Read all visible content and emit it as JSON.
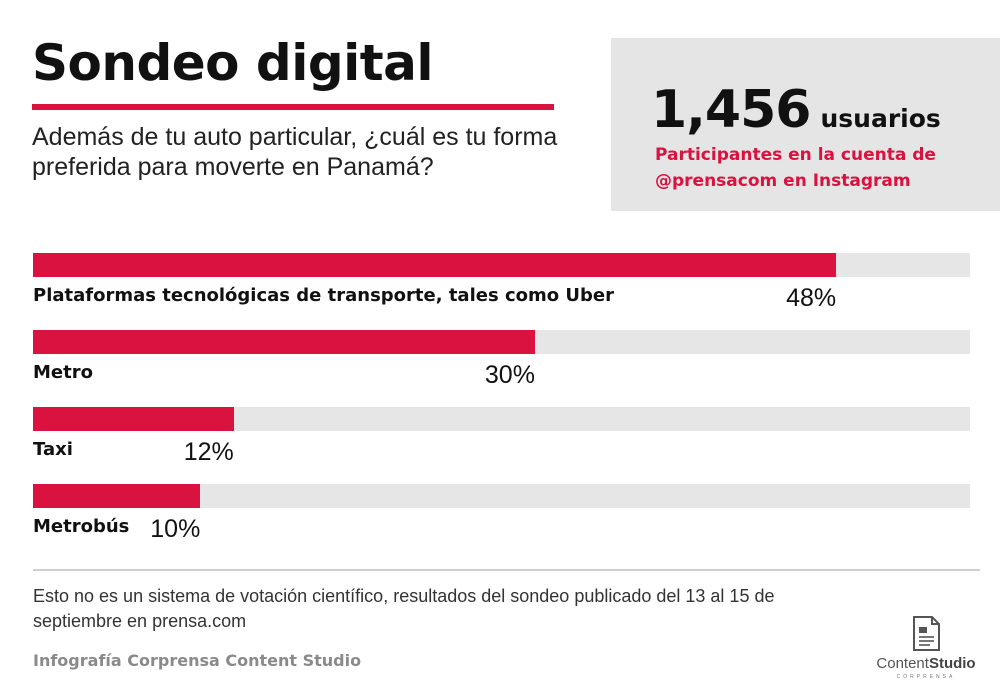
{
  "header": {
    "title": "Sondeo digital",
    "question": "Además de tu auto particular, ¿cuál es tu forma preferida para moverte en Panamá?"
  },
  "stat": {
    "number": "1,456",
    "unit": "usuarios",
    "description": "Participantes en la cuenta de @prensacom en Instagram"
  },
  "chart_data": {
    "type": "bar",
    "orientation": "horizontal",
    "categories": [
      "Plataformas tecnológicas de transporte, tales como Uber",
      "Metro",
      "Taxi",
      "Metrobús"
    ],
    "values": [
      48,
      30,
      12,
      10
    ],
    "value_labels": [
      "48%",
      "30%",
      "12%",
      "10%"
    ],
    "title": "",
    "xlabel": "",
    "ylabel": "",
    "xlim": [
      0,
      56
    ],
    "grid": false,
    "legend": "none"
  },
  "footer": {
    "note": "Esto no es un sistema de votación científico, resultados del sondeo publicado del 13 al 15 de septiembre en prensa.com",
    "credit": "Infografía Corprensa Content Studio"
  },
  "logo": {
    "icon": "document-icon",
    "text_regular": "Content",
    "text_bold": "Studio",
    "subtext": "CORPRENSA"
  },
  "colors": {
    "accent": "#d9123f",
    "track": "#e6e6e6",
    "stat_box": "#e5e5e5",
    "credit": "#8a8a8a"
  }
}
